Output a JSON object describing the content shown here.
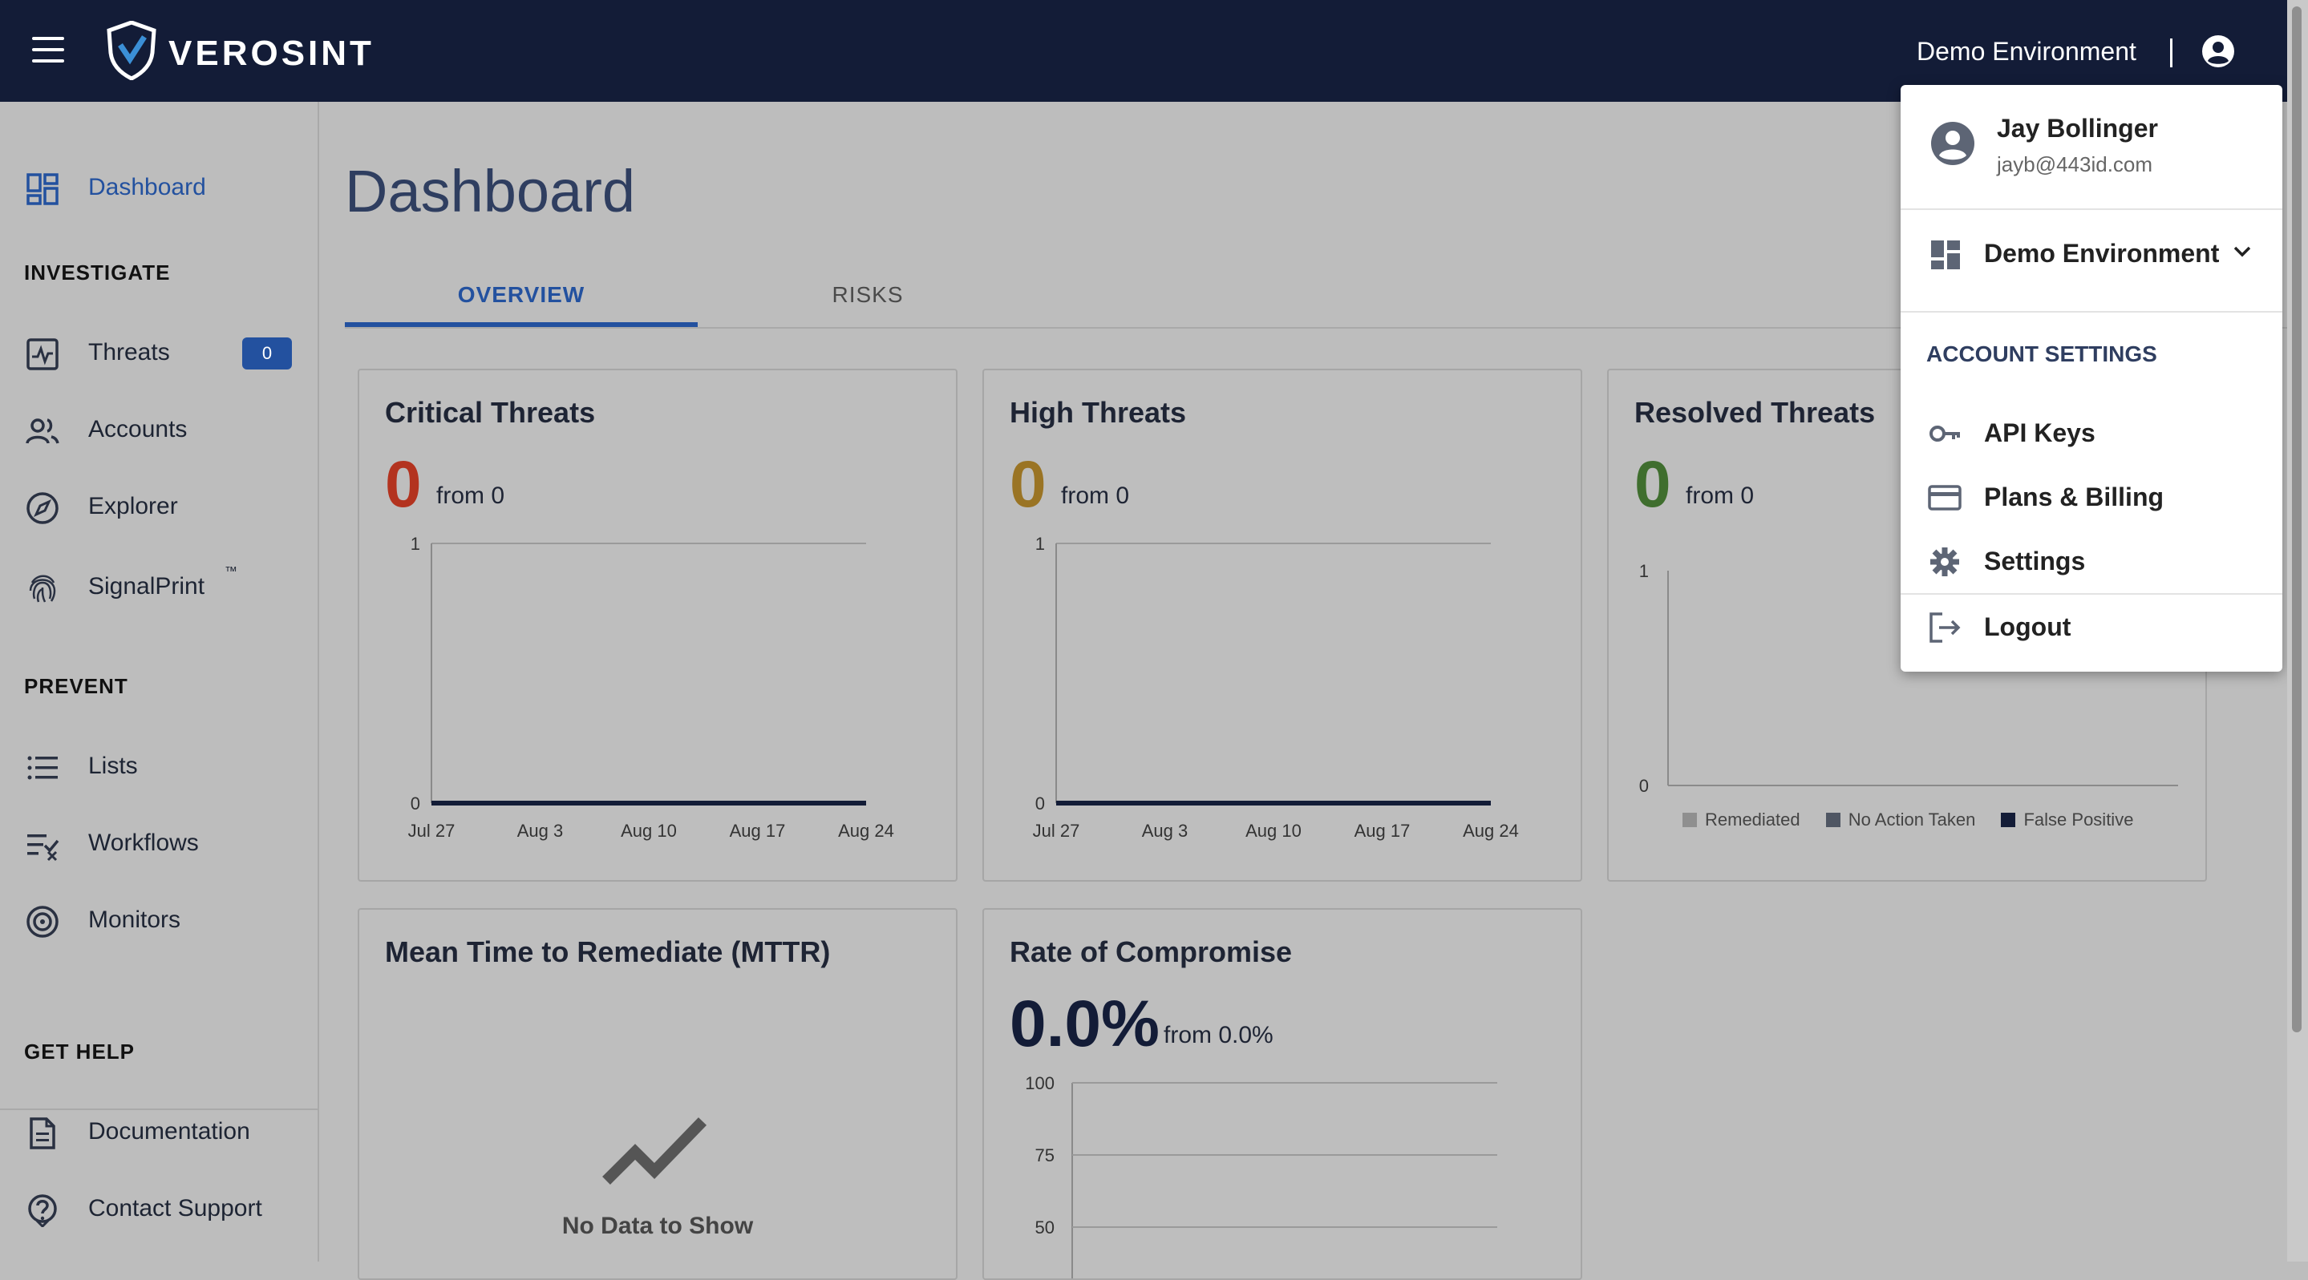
{
  "topbar": {
    "brand": "VEROSINT",
    "environment": "Demo Environment"
  },
  "sidebar": {
    "dashboard": "Dashboard",
    "investigate_title": "INVESTIGATE",
    "threats": "Threats",
    "threats_count": "0",
    "accounts": "Accounts",
    "explorer": "Explorer",
    "signalprint": "SignalPrint",
    "signalprint_tm": "™",
    "prevent_title": "PREVENT",
    "lists": "Lists",
    "workflows": "Workflows",
    "monitors": "Monitors",
    "help_title": "GET HELP",
    "documentation": "Documentation",
    "contact_support": "Contact Support"
  },
  "main": {
    "title": "Dashboard",
    "tabs": [
      {
        "label": "OVERVIEW",
        "active": true
      },
      {
        "label": "RISKS",
        "active": false
      }
    ]
  },
  "cards": {
    "critical": {
      "title": "Critical Threats",
      "value": "0",
      "from": "from 0",
      "color": "#b3331f"
    },
    "high": {
      "title": "High Threats",
      "value": "0",
      "from": "from 0",
      "color": "#9a7424"
    },
    "resolved": {
      "title": "Resolved Threats",
      "value": "0",
      "from": "from 0",
      "color": "#3f6e2e"
    },
    "mttr": {
      "title": "Mean Time to Remediate (MTTR)",
      "empty_text": "No Data to Show"
    },
    "compromise": {
      "title": "Rate of Compromise",
      "value": "0.0%",
      "from": "from 0.0%"
    }
  },
  "chart_data": [
    {
      "type": "line",
      "title": "Critical Threats",
      "x": [
        "Jul 27",
        "Aug 3",
        "Aug 10",
        "Aug 17",
        "Aug 24"
      ],
      "series": [
        {
          "values": [
            0,
            0,
            0,
            0,
            0
          ]
        }
      ],
      "ylim": [
        0,
        1
      ],
      "yticks": [
        "1",
        "0"
      ],
      "grid": "top only"
    },
    {
      "type": "line",
      "title": "High Threats",
      "x": [
        "Jul 27",
        "Aug 3",
        "Aug 10",
        "Aug 17",
        "Aug 24"
      ],
      "series": [
        {
          "values": [
            0,
            0,
            0,
            0,
            0
          ]
        }
      ],
      "ylim": [
        0,
        1
      ],
      "yticks": [
        "1",
        "0"
      ],
      "grid": "top only"
    },
    {
      "type": "bar",
      "title": "Resolved Threats",
      "ylim": [
        0,
        1
      ],
      "yticks": [
        "1",
        "0"
      ],
      "series": [
        {
          "name": "Remediated",
          "color": "#8f8f8f",
          "values": []
        },
        {
          "name": "No Action Taken",
          "color": "#4f5663",
          "values": []
        },
        {
          "name": "False Positive",
          "color": "#131c37",
          "values": []
        }
      ],
      "legend": "bottom"
    },
    {
      "type": "line",
      "title": "Rate of Compromise",
      "ylim": [
        0,
        100
      ],
      "yticks": [
        "100",
        "75",
        "50"
      ],
      "series": [],
      "grid": "horizontal"
    }
  ],
  "user_menu": {
    "name": "Jay Bollinger",
    "email": "jayb@443id.com",
    "environment": "Demo Environment",
    "section_title": "ACCOUNT SETTINGS",
    "items": [
      "API Keys",
      "Plans & Billing",
      "Settings",
      "Logout"
    ]
  },
  "icons": {
    "menu": "hamburger-icon",
    "logo": "shield-logo-icon",
    "user": "account-circle-icon",
    "dashboard": "dashboard-grid-icon",
    "threats": "threat-chart-icon",
    "accounts": "people-icon",
    "explorer": "compass-icon",
    "signalprint": "fingerprint-icon",
    "lists": "list-icon",
    "workflows": "workflow-icon",
    "monitors": "target-icon",
    "documentation": "document-icon",
    "contact_support": "help-circle-icon"
  },
  "colors": {
    "topbar": "#131c37",
    "accent": "#23519f",
    "overlay_background": "#bdbdbd"
  }
}
